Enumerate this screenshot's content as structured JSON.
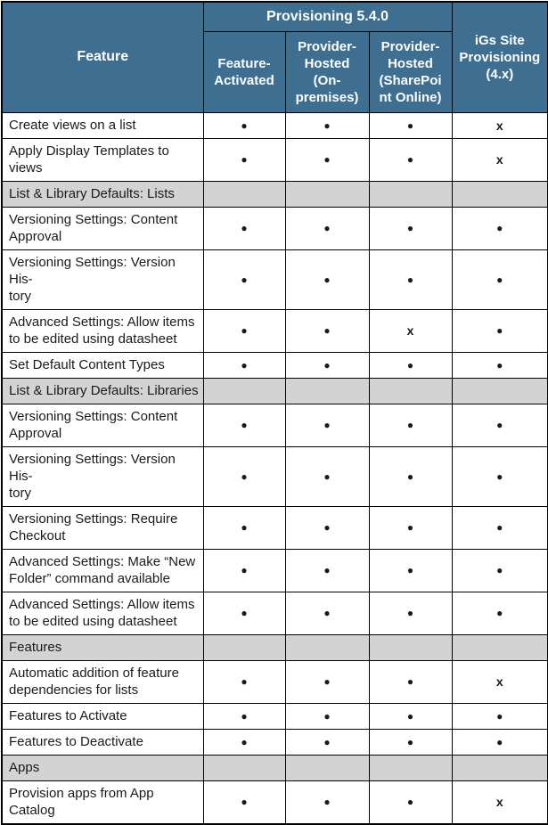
{
  "table": {
    "group_header": "Provisioning 5.4.0",
    "feature_header": "Feature",
    "sub_headers": [
      "Feature-\nActivated",
      "Provider-\nHosted\n(On-\npremises)",
      "Provider-\nHosted\n(SharePoi\nnt Online)"
    ],
    "igs_header": "iGs Site\nProvisioning\n(4.x)",
    "legend": {
      "supported_mark": "●",
      "unsupported_mark": "x"
    },
    "colors": {
      "header_bg": "#3E6F91",
      "header_text": "#FFFFFF",
      "section_bg": "#D3D3D3",
      "border": "#000000",
      "body_text": "#1A1A1A"
    },
    "rows": [
      {
        "type": "data",
        "label": "Create views on a list",
        "cells": [
          "●",
          "●",
          "●",
          "x"
        ]
      },
      {
        "type": "data",
        "label": "Apply Display Templates to views",
        "cells": [
          "●",
          "●",
          "●",
          "x"
        ]
      },
      {
        "type": "section",
        "label": "List & Library Defaults: Lists",
        "cells": [
          "",
          "",
          "",
          ""
        ]
      },
      {
        "type": "data",
        "label": "Versioning Settings: Content\nApproval",
        "cells": [
          "●",
          "●",
          "●",
          "●"
        ]
      },
      {
        "type": "data",
        "label": "Versioning Settings: Version His-\ntory",
        "cells": [
          "●",
          "●",
          "●",
          "●"
        ]
      },
      {
        "type": "data",
        "label": "Advanced Settings: Allow items\nto be edited using datasheet",
        "cells": [
          "●",
          "●",
          "x",
          "●"
        ]
      },
      {
        "type": "data",
        "label": "Set Default Content Types",
        "cells": [
          "●",
          "●",
          "●",
          "●"
        ]
      },
      {
        "type": "section",
        "label": "List & Library Defaults: Libraries",
        "cells": [
          "",
          "",
          "",
          ""
        ]
      },
      {
        "type": "data",
        "label": "Versioning Settings: Content\nApproval",
        "cells": [
          "●",
          "●",
          "●",
          "●"
        ]
      },
      {
        "type": "data",
        "label": "Versioning Settings: Version His-\ntory",
        "cells": [
          "●",
          "●",
          "●",
          "●"
        ]
      },
      {
        "type": "data",
        "label": "Versioning Settings: Require\nCheckout",
        "cells": [
          "●",
          "●",
          "●",
          "●"
        ]
      },
      {
        "type": "data",
        "label": "Advanced Settings: Make “New\nFolder” command available",
        "cells": [
          "●",
          "●",
          "●",
          "●"
        ]
      },
      {
        "type": "data",
        "label": "Advanced Settings: Allow items\nto be edited using datasheet",
        "cells": [
          "●",
          "●",
          "●",
          "●"
        ]
      },
      {
        "type": "section",
        "label": "Features",
        "cells": [
          "",
          "",
          "",
          ""
        ]
      },
      {
        "type": "data",
        "label": "Automatic addition of feature\ndependencies for lists",
        "cells": [
          "●",
          "●",
          "●",
          "x"
        ]
      },
      {
        "type": "data",
        "label": "Features to Activate",
        "cells": [
          "●",
          "●",
          "●",
          "●"
        ]
      },
      {
        "type": "data",
        "label": "Features to Deactivate",
        "cells": [
          "●",
          "●",
          "●",
          "●"
        ]
      },
      {
        "type": "section",
        "label": "Apps",
        "cells": [
          "",
          "",
          "",
          ""
        ]
      },
      {
        "type": "data",
        "label": "Provision apps from App Catalog",
        "cells": [
          "●",
          "●",
          "●",
          "x"
        ]
      }
    ]
  }
}
